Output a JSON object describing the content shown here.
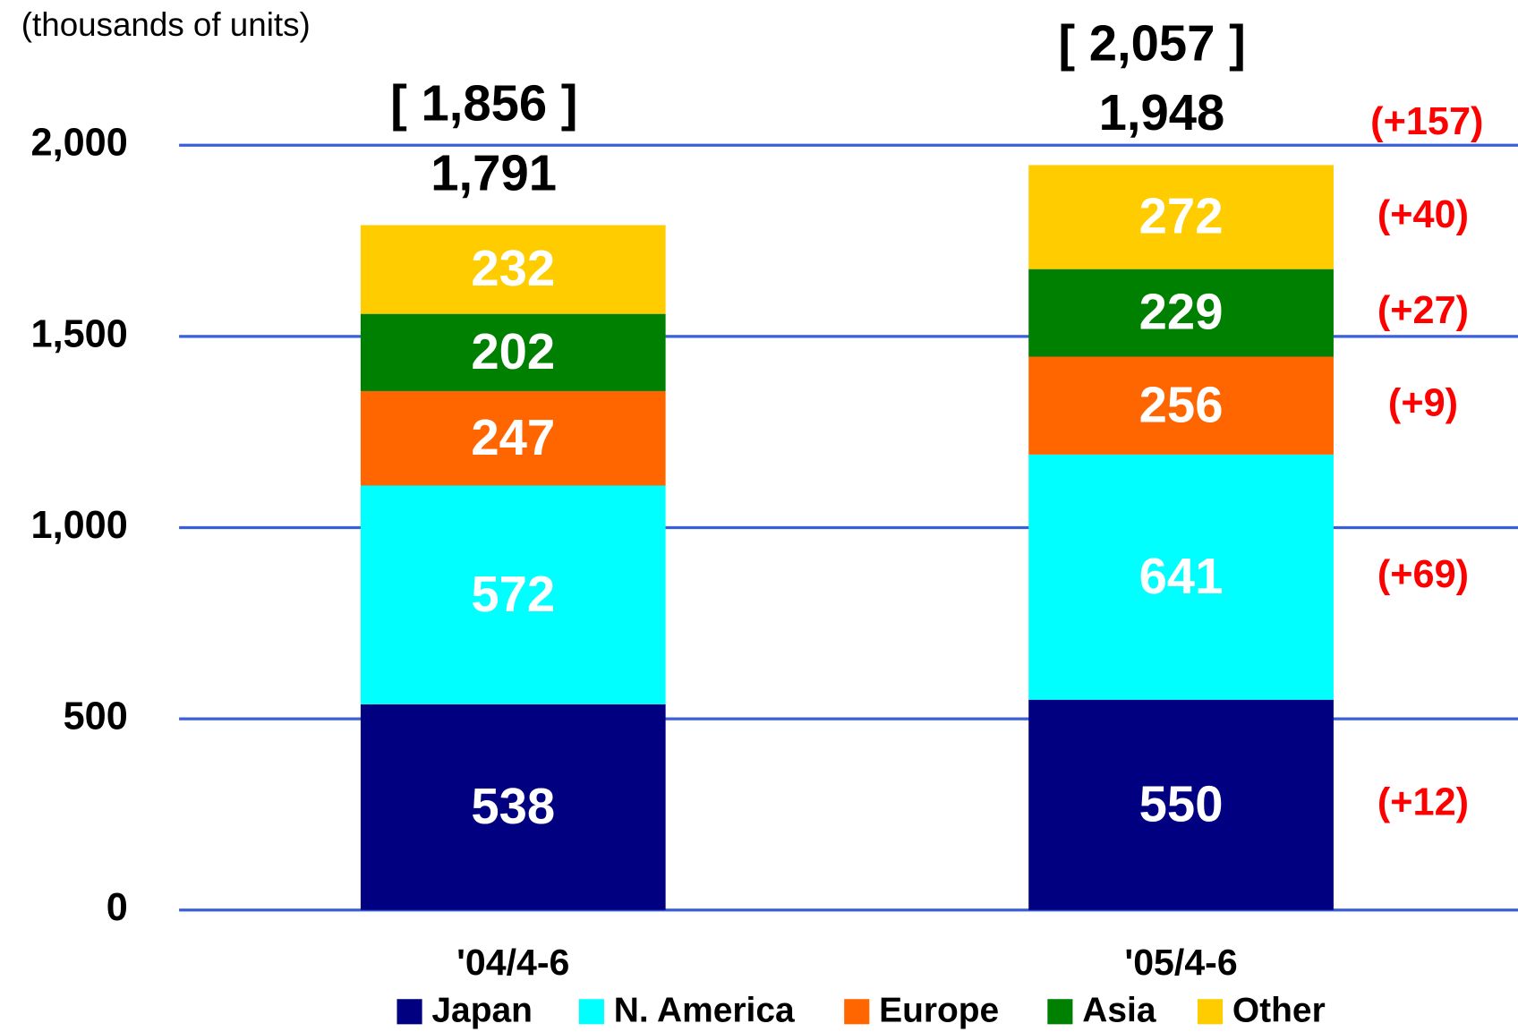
{
  "chart_data": {
    "type": "stacked_bar",
    "axis_label": "(thousands of units)",
    "categories": [
      "'04/4-6",
      "'05/4-6"
    ],
    "series": [
      {
        "name": "Japan",
        "color": "#000080",
        "values": [
          538,
          550
        ],
        "change_label": "(+12)"
      },
      {
        "name": "N. America",
        "color": "#00ffff",
        "values": [
          572,
          641
        ],
        "change_label": "(+69)"
      },
      {
        "name": "Europe",
        "color": "#ff6600",
        "values": [
          247,
          256
        ],
        "change_label": "(+9)"
      },
      {
        "name": "Asia",
        "color": "#008000",
        "values": [
          202,
          229
        ],
        "change_label": "(+27)"
      },
      {
        "name": "Other",
        "color": "#ffcc00",
        "values": [
          232,
          272
        ],
        "change_label": "(+40)"
      }
    ],
    "totals": {
      "values": [
        1791,
        1948
      ],
      "value_labels": [
        "1,791",
        "1,948"
      ],
      "change_label": "(+157)"
    },
    "bracket_labels": [
      "[ 1,856 ]",
      "[ 2,057 ]"
    ],
    "ylim": [
      0,
      2000
    ],
    "yticks": [
      0,
      500,
      {
        "value": 1000,
        "label": "1,000"
      },
      {
        "value": 1500,
        "label": "1,500"
      },
      {
        "value": 2000,
        "label": "2,000"
      }
    ],
    "grid": true,
    "grid_color": "#3a5fd9",
    "legend": "bottom"
  }
}
